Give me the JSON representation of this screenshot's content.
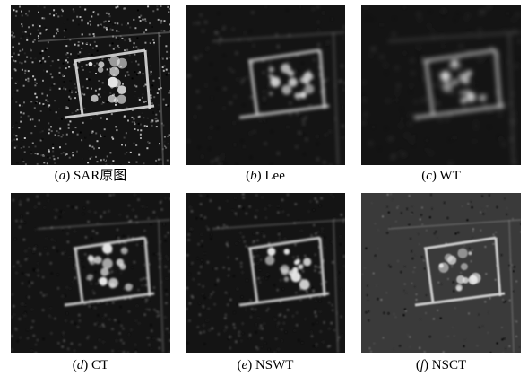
{
  "panels": [
    {
      "letter": "a",
      "text": "SAR原图",
      "style": "speckle"
    },
    {
      "letter": "b",
      "text": "Lee",
      "style": "smooth"
    },
    {
      "letter": "c",
      "text": "WT",
      "style": "blur"
    },
    {
      "letter": "d",
      "text": "CT",
      "style": "speckle-soft"
    },
    {
      "letter": "e",
      "text": "NSWT",
      "style": "speckle-soft"
    },
    {
      "letter": "f",
      "text": "NSCT",
      "style": "ringing"
    }
  ],
  "colors": {
    "background": "#ffffff",
    "image_dark": "#0c0c0c",
    "feature": "#d9d9d9"
  }
}
